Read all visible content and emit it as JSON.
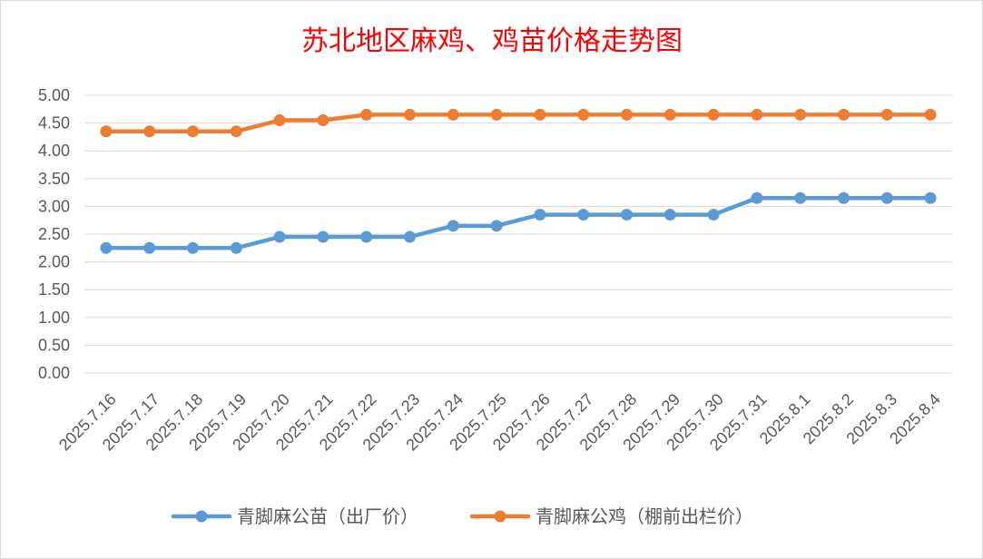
{
  "chart_data": {
    "type": "line",
    "title": "苏北地区麻鸡、鸡苗价格走势图",
    "xlabel": "",
    "ylabel": "",
    "ylim": [
      0,
      5
    ],
    "y_step": 0.5,
    "y_tick_labels": [
      "0.00",
      "0.50",
      "1.00",
      "1.50",
      "2.00",
      "2.50",
      "3.00",
      "3.50",
      "4.00",
      "4.50",
      "5.00"
    ],
    "grid": true,
    "legend_position": "bottom",
    "categories": [
      "2025.7.16",
      "2025.7.17",
      "2025.7.18",
      "2025.7.19",
      "2025.7.20",
      "2025.7.21",
      "2025.7.22",
      "2025.7.23",
      "2025.7.24",
      "2025.7.25",
      "2025.7.26",
      "2025.7.27",
      "2025.7.28",
      "2025.7.29",
      "2025.7.30",
      "2025.7.31",
      "2025.8.1",
      "2025.8.2",
      "2025.8.3",
      "2025.8.4"
    ],
    "series": [
      {
        "name": "青脚麻公苗（出厂价）",
        "color": "#5b9bd5",
        "values": [
          2.25,
          2.25,
          2.25,
          2.25,
          2.45,
          2.45,
          2.45,
          2.45,
          2.65,
          2.65,
          2.85,
          2.85,
          2.85,
          2.85,
          2.85,
          3.15,
          3.15,
          3.15,
          3.15,
          3.15
        ]
      },
      {
        "name": "青脚麻公鸡（棚前出栏价）",
        "color": "#ed7d31",
        "values": [
          4.35,
          4.35,
          4.35,
          4.35,
          4.55,
          4.55,
          4.65,
          4.65,
          4.65,
          4.65,
          4.65,
          4.65,
          4.65,
          4.65,
          4.65,
          4.65,
          4.65,
          4.65,
          4.65,
          4.65
        ]
      }
    ]
  }
}
